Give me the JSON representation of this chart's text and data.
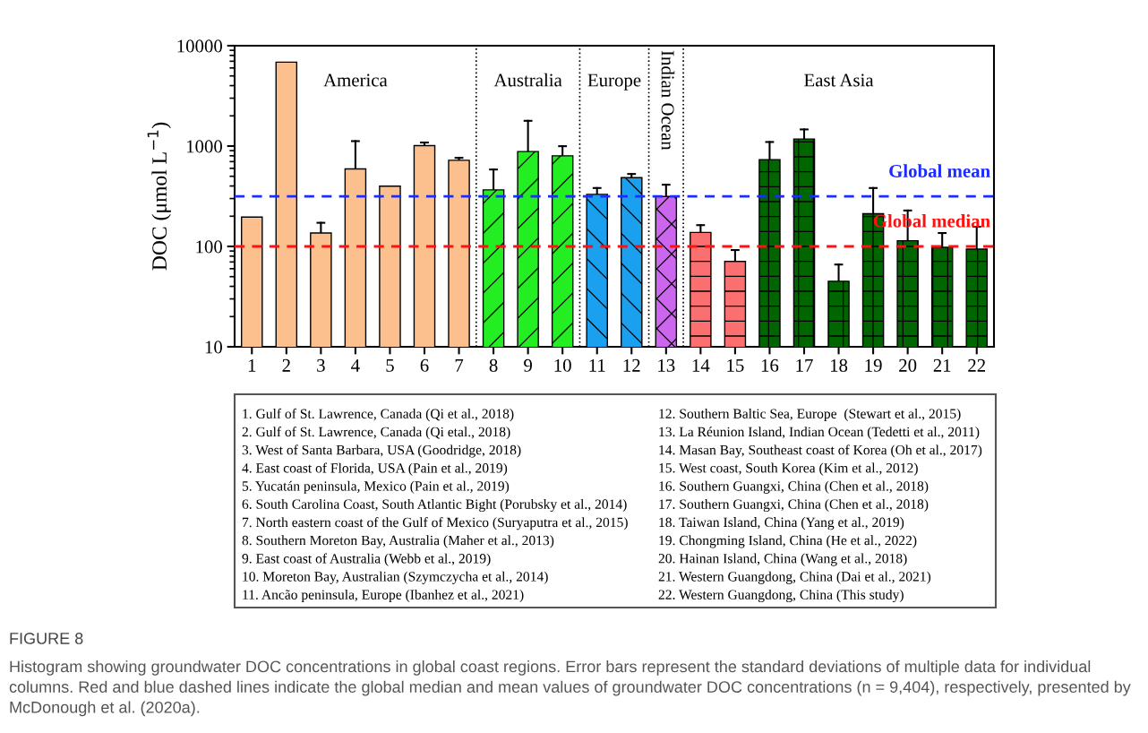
{
  "chart_data": {
    "type": "bar",
    "ylabel": "DOC (μmol L$^{−1}$)",
    "xlim": [
      0.5,
      22.5
    ],
    "xticks": [
      1,
      2,
      3,
      4,
      5,
      6,
      7,
      8,
      9,
      10,
      11,
      12,
      13,
      14,
      15,
      16,
      17,
      18,
      19,
      20,
      21,
      22
    ],
    "log": "y",
    "ylim": [
      10,
      10000
    ],
    "yticks": [
      10,
      100,
      1000,
      10000
    ],
    "grid": false,
    "series": [
      {
        "color": "#fcc08f",
        "x": [
          1,
          2,
          3,
          4,
          5,
          6,
          7
        ],
        "values": [
          196,
          6850,
          136,
          592,
          398,
          1010,
          722
        ],
        "errors": [
          null,
          null,
          [
            136,
            172
          ],
          [
            592,
            1120
          ],
          null,
          [
            1010,
            1085
          ],
          [
            722,
            763
          ]
        ]
      },
      {
        "color": "#22ee22",
        "x": [
          8,
          9,
          10
        ],
        "values": [
          366,
          882,
          800
        ],
        "errors": [
          [
            366,
            584
          ],
          [
            882,
            1785
          ],
          [
            800,
            997
          ]
        ]
      },
      {
        "color": "#1aa0ee",
        "x": [
          11,
          12
        ],
        "values": [
          330,
          485
        ],
        "errors": [
          [
            330,
            382
          ],
          [
            485,
            527
          ]
        ]
      },
      {
        "color": "#cc66ee",
        "x": [
          13
        ],
        "values": [
          315
        ],
        "errors": [
          [
            315,
            412
          ]
        ]
      },
      {
        "color": "#fa7070",
        "x": [
          14,
          15
        ],
        "values": [
          138,
          71
        ],
        "errors": [
          [
            138,
            163
          ],
          [
            71,
            92
          ]
        ]
      },
      {
        "color": "#006600",
        "x": [
          16,
          17,
          18,
          19,
          20,
          21,
          22
        ],
        "values": [
          733,
          1175,
          45,
          212,
          114,
          98,
          94
        ],
        "errors": [
          [
            733,
            1098
          ],
          [
            1175,
            1465
          ],
          [
            45,
            66
          ],
          [
            212,
            382
          ],
          [
            114,
            228
          ],
          [
            98,
            136
          ],
          [
            94,
            157
          ]
        ]
      }
    ],
    "ref_lines": [
      {
        "axis": "x",
        "value": 7.5,
        "color": "#000000",
        "line_style": "dotted"
      },
      {
        "axis": "x",
        "value": 10.5,
        "color": "#000000",
        "line_style": "dotted"
      },
      {
        "axis": "x",
        "value": 12.5,
        "color": "#000000",
        "line_style": "dotted"
      },
      {
        "axis": "x",
        "value": 13.5,
        "color": "#000000",
        "line_style": "dotted"
      },
      {
        "axis": "y",
        "value": 315,
        "label": "Global mean",
        "color": "#1a2cff",
        "line_style": "dashed"
      },
      {
        "axis": "y",
        "value": 100,
        "label": "Global median",
        "color": "#ff1111",
        "line_style": "dashed"
      }
    ],
    "annotations": [
      "America",
      "Australia",
      "Europe",
      "Indian Ocean",
      "East Asia",
      "1. Gulf of St. Lawrence, Canada (Qi et al., 2018)",
      "2. Gulf of St. Lawrence, Canada (Qi etal., 2018)",
      "3. West of Santa Barbara, USA (Goodridge, 2018)",
      "4. East coast of Florida, USA (Pain et al., 2019)",
      "5. Yucatán peninsula, Mexico (Pain et al., 2019)",
      "6. South Carolina Coast, South Atlantic Bight (Porubsky et al., 2014)",
      "7. North eastern coast of the Gulf of Mexico (Suryaputra et al., 2015)",
      "8. Southern Moreton Bay, Australia (Maher et al., 2013)",
      "9. East coast of Australia (Webb et al., 2019)",
      "10. Moreton Bay, Australian (Szymczycha et al., 2014)",
      "11. Ancão peninsula, Europe (Ibanhez et al., 2021)",
      "12. Southern Baltic Sea, Europe  (Stewart et al., 2015)",
      "13. La Réunion Island, Indian Ocean (Tedetti et al., 2011)",
      "14. Masan Bay, Southeast coast of Korea (Oh et al., 2017)",
      "15. West coast, South Korea (Kim et al., 2012)",
      "16. Southern Guangxi, China (Chen et al., 2018)",
      "17. Southern Guangxi, China (Chen et al., 2018)",
      "18. Taiwan Island, China (Yang et al., 2019)",
      "19. Chongming Island, China (He et al., 2022)",
      "20. Hainan Island, China (Wang et al., 2018)",
      "21. Western Guangdong, China (Dai et al., 2021)",
      "22. Western Guangdong, China (This study)",
      "FIGURE 8",
      "Histogram showing groundwater DOC concentrations in global coast regions. Error bars represent the standard deviations of multiple data for individual columns. Red and blue dashed lines indicate the global median and mean values of groundwater DOC concentrations (n = 9,404), respectively, presented by McDonough et al. (2020a)."
    ]
  }
}
